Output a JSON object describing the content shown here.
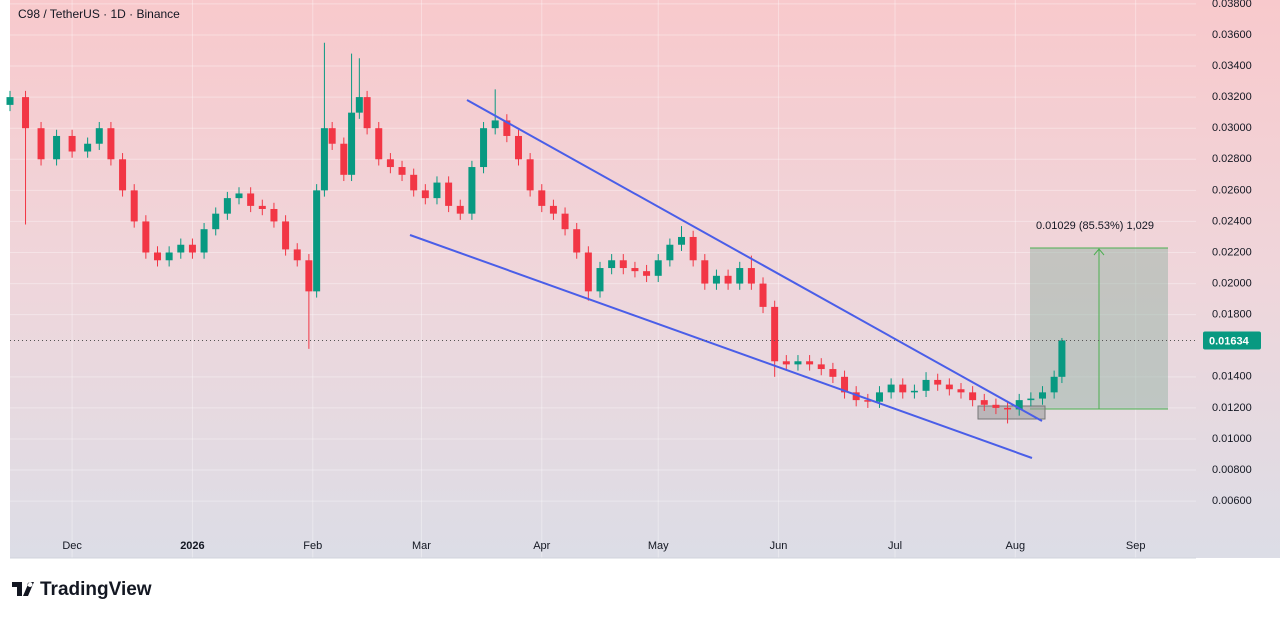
{
  "chart_data": {
    "type": "candlestick",
    "title": "C98 / TetherUS · 1D · Binance",
    "brand": "TradingView",
    "annotation": "0.01029 (85.53%) 1,029",
    "last_price": 0.01634,
    "up_color": "#089981",
    "down_color": "#f23645",
    "grid": true,
    "xlim": [
      -16,
      288
    ],
    "ylim": [
      0.00234,
      0.03825
    ],
    "xticks": [
      {
        "value": 0,
        "label": "Dec"
      },
      {
        "value": 31,
        "label": "2026"
      },
      {
        "value": 62,
        "label": "Feb"
      },
      {
        "value": 90,
        "label": "Mar"
      },
      {
        "value": 121,
        "label": "Apr"
      },
      {
        "value": 151,
        "label": "May"
      },
      {
        "value": 182,
        "label": "Jun"
      },
      {
        "value": 212,
        "label": "Jul"
      },
      {
        "value": 243,
        "label": "Aug"
      },
      {
        "value": 274,
        "label": "Sep"
      }
    ],
    "yticks": [
      {
        "value": 0.006,
        "label": "0.00600"
      },
      {
        "value": 0.008,
        "label": "0.00800"
      },
      {
        "value": 0.01,
        "label": "0.01000"
      },
      {
        "value": 0.012,
        "label": "0.01200"
      },
      {
        "value": 0.014,
        "label": "0.01400"
      },
      {
        "value": 0.018,
        "label": "0.01800"
      },
      {
        "value": 0.02,
        "label": "0.02000"
      },
      {
        "value": 0.022,
        "label": "0.02200"
      },
      {
        "value": 0.024,
        "label": "0.02400"
      },
      {
        "value": 0.026,
        "label": "0.02600"
      },
      {
        "value": 0.028,
        "label": "0.02800"
      },
      {
        "value": 0.03,
        "label": "0.03000"
      },
      {
        "value": 0.032,
        "label": "0.03200"
      },
      {
        "value": 0.034,
        "label": "0.03400"
      },
      {
        "value": 0.036,
        "label": "0.03600"
      },
      {
        "value": 0.038,
        "label": "0.03800"
      }
    ],
    "x": [
      -16,
      -12,
      -8,
      -4,
      0,
      4,
      7,
      10,
      13,
      16,
      19,
      22,
      25,
      28,
      31,
      34,
      37,
      40,
      43,
      46,
      49,
      52,
      55,
      58,
      61,
      63,
      65,
      67,
      70,
      72,
      74,
      76,
      79,
      82,
      85,
      88,
      91,
      94,
      97,
      100,
      103,
      106,
      109,
      112,
      115,
      118,
      121,
      124,
      127,
      130,
      133,
      136,
      139,
      142,
      145,
      148,
      151,
      154,
      157,
      160,
      163,
      166,
      169,
      172,
      175,
      178,
      181,
      184,
      187,
      190,
      193,
      196,
      199,
      202,
      205,
      208,
      211,
      214,
      217,
      220,
      223,
      226,
      229,
      232,
      235,
      238,
      241,
      244,
      247,
      250,
      253,
      255
    ],
    "open": [
      0.0315,
      0.032,
      0.03,
      0.028,
      0.0295,
      0.0285,
      0.029,
      0.03,
      0.028,
      0.026,
      0.024,
      0.022,
      0.0215,
      0.022,
      0.0225,
      0.022,
      0.0235,
      0.0245,
      0.0255,
      0.0258,
      0.025,
      0.0248,
      0.024,
      0.0222,
      0.0215,
      0.0195,
      0.026,
      0.03,
      0.029,
      0.027,
      0.031,
      0.032,
      0.03,
      0.028,
      0.0275,
      0.027,
      0.026,
      0.0255,
      0.0265,
      0.025,
      0.0245,
      0.0275,
      0.03,
      0.0305,
      0.0295,
      0.028,
      0.026,
      0.025,
      0.0245,
      0.0235,
      0.022,
      0.0195,
      0.021,
      0.0215,
      0.021,
      0.0208,
      0.0205,
      0.0215,
      0.0225,
      0.023,
      0.0215,
      0.02,
      0.0205,
      0.02,
      0.021,
      0.02,
      0.0185,
      0.015,
      0.0148,
      0.015,
      0.0148,
      0.0145,
      0.014,
      0.013,
      0.0125,
      0.0124,
      0.013,
      0.0135,
      0.013,
      0.0131,
      0.0138,
      0.0135,
      0.0132,
      0.013,
      0.0125,
      0.0122,
      0.012,
      0.0119,
      0.0125,
      0.0126,
      0.013,
      0.014
    ],
    "high": [
      0.0324,
      0.0324,
      0.0304,
      0.0299,
      0.0299,
      0.0294,
      0.0304,
      0.0304,
      0.0284,
      0.0264,
      0.0244,
      0.0224,
      0.0224,
      0.0229,
      0.0229,
      0.0239,
      0.0249,
      0.0259,
      0.0262,
      0.0262,
      0.0254,
      0.0252,
      0.0244,
      0.0226,
      0.0219,
      0.0264,
      0.0355,
      0.0304,
      0.0294,
      0.0348,
      0.0345,
      0.0324,
      0.0304,
      0.0284,
      0.0279,
      0.0274,
      0.0264,
      0.0269,
      0.0269,
      0.0254,
      0.0279,
      0.0304,
      0.0325,
      0.0309,
      0.0299,
      0.0284,
      0.0264,
      0.0254,
      0.0249,
      0.0239,
      0.0224,
      0.0214,
      0.0219,
      0.0219,
      0.0214,
      0.0212,
      0.0219,
      0.0229,
      0.0237,
      0.0234,
      0.0219,
      0.0209,
      0.0209,
      0.0214,
      0.0218,
      0.0204,
      0.0189,
      0.0154,
      0.0154,
      0.0154,
      0.0152,
      0.0149,
      0.0144,
      0.0134,
      0.0129,
      0.0134,
      0.0139,
      0.0139,
      0.0135,
      0.0143,
      0.0142,
      0.0139,
      0.0136,
      0.0134,
      0.0129,
      0.0126,
      0.0124,
      0.0129,
      0.013,
      0.0134,
      0.0144,
      0.0165
    ],
    "low": [
      0.0311,
      0.0238,
      0.0276,
      0.0276,
      0.0281,
      0.0281,
      0.0286,
      0.0276,
      0.0256,
      0.0236,
      0.0216,
      0.0211,
      0.0211,
      0.0216,
      0.0216,
      0.0216,
      0.0231,
      0.0241,
      0.0251,
      0.0246,
      0.0244,
      0.0236,
      0.0218,
      0.0211,
      0.0158,
      0.0191,
      0.0256,
      0.0286,
      0.0266,
      0.0266,
      0.0306,
      0.0296,
      0.0276,
      0.0271,
      0.0266,
      0.0256,
      0.0251,
      0.0251,
      0.0246,
      0.0241,
      0.0241,
      0.0271,
      0.0296,
      0.0291,
      0.0276,
      0.0256,
      0.0246,
      0.0241,
      0.0231,
      0.0216,
      0.0189,
      0.0191,
      0.0206,
      0.0206,
      0.0204,
      0.0201,
      0.0201,
      0.0211,
      0.0221,
      0.0211,
      0.0196,
      0.0196,
      0.0196,
      0.0196,
      0.0196,
      0.0181,
      0.014,
      0.0144,
      0.0144,
      0.0144,
      0.0141,
      0.0136,
      0.0126,
      0.0121,
      0.012,
      0.012,
      0.0126,
      0.0126,
      0.0126,
      0.0127,
      0.0131,
      0.0128,
      0.0126,
      0.0121,
      0.0118,
      0.0116,
      0.011,
      0.0115,
      0.0121,
      0.0122,
      0.0126,
      0.0136
    ],
    "close": [
      0.032,
      0.03,
      0.028,
      0.0295,
      0.0285,
      0.029,
      0.03,
      0.028,
      0.026,
      0.024,
      0.022,
      0.0215,
      0.022,
      0.0225,
      0.022,
      0.0235,
      0.0245,
      0.0255,
      0.0258,
      0.025,
      0.0248,
      0.024,
      0.0222,
      0.0215,
      0.0195,
      0.026,
      0.03,
      0.029,
      0.027,
      0.031,
      0.032,
      0.03,
      0.028,
      0.0275,
      0.027,
      0.026,
      0.0255,
      0.0265,
      0.025,
      0.0245,
      0.0275,
      0.03,
      0.0305,
      0.0295,
      0.028,
      0.026,
      0.025,
      0.0245,
      0.0235,
      0.022,
      0.0195,
      0.021,
      0.0215,
      0.021,
      0.0208,
      0.0205,
      0.0215,
      0.0225,
      0.023,
      0.0215,
      0.02,
      0.0205,
      0.02,
      0.021,
      0.02,
      0.0185,
      0.015,
      0.0148,
      0.015,
      0.0148,
      0.0145,
      0.014,
      0.013,
      0.0125,
      0.0124,
      0.013,
      0.0135,
      0.013,
      0.0131,
      0.0138,
      0.0135,
      0.0132,
      0.013,
      0.0125,
      0.0122,
      0.012,
      0.0119,
      0.0125,
      0.0126,
      0.013,
      0.014,
      0.01634
    ]
  }
}
